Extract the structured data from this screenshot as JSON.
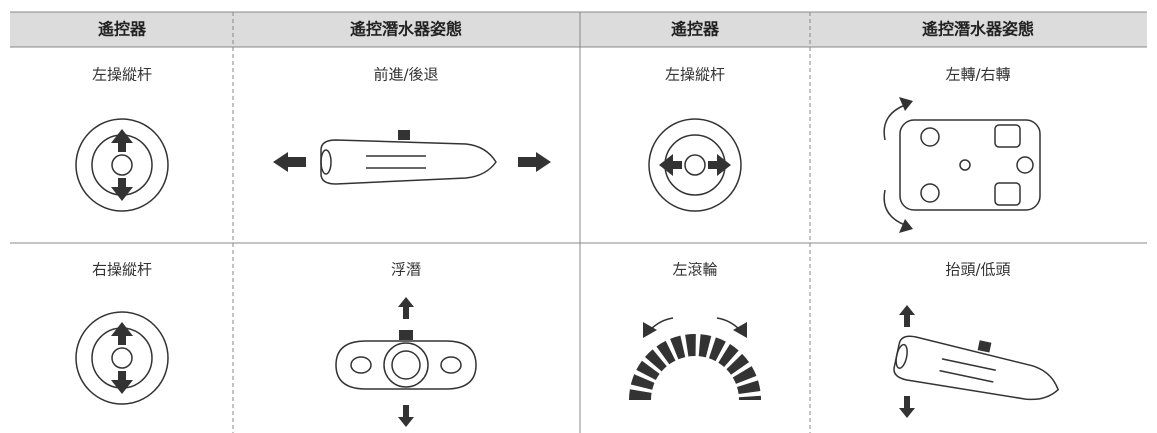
{
  "table": {
    "header": [
      "遙控器",
      "遙控潛水器姿態",
      "遙控器",
      "遙控潛水器姿態"
    ],
    "rows": [
      [
        "左操縱杆",
        "前進/後退",
        "左操縱杆",
        "左轉/右轉"
      ],
      [
        "右操縱杆",
        "浮潛",
        "左滾輪",
        "抬頭/低頭"
      ]
    ]
  }
}
